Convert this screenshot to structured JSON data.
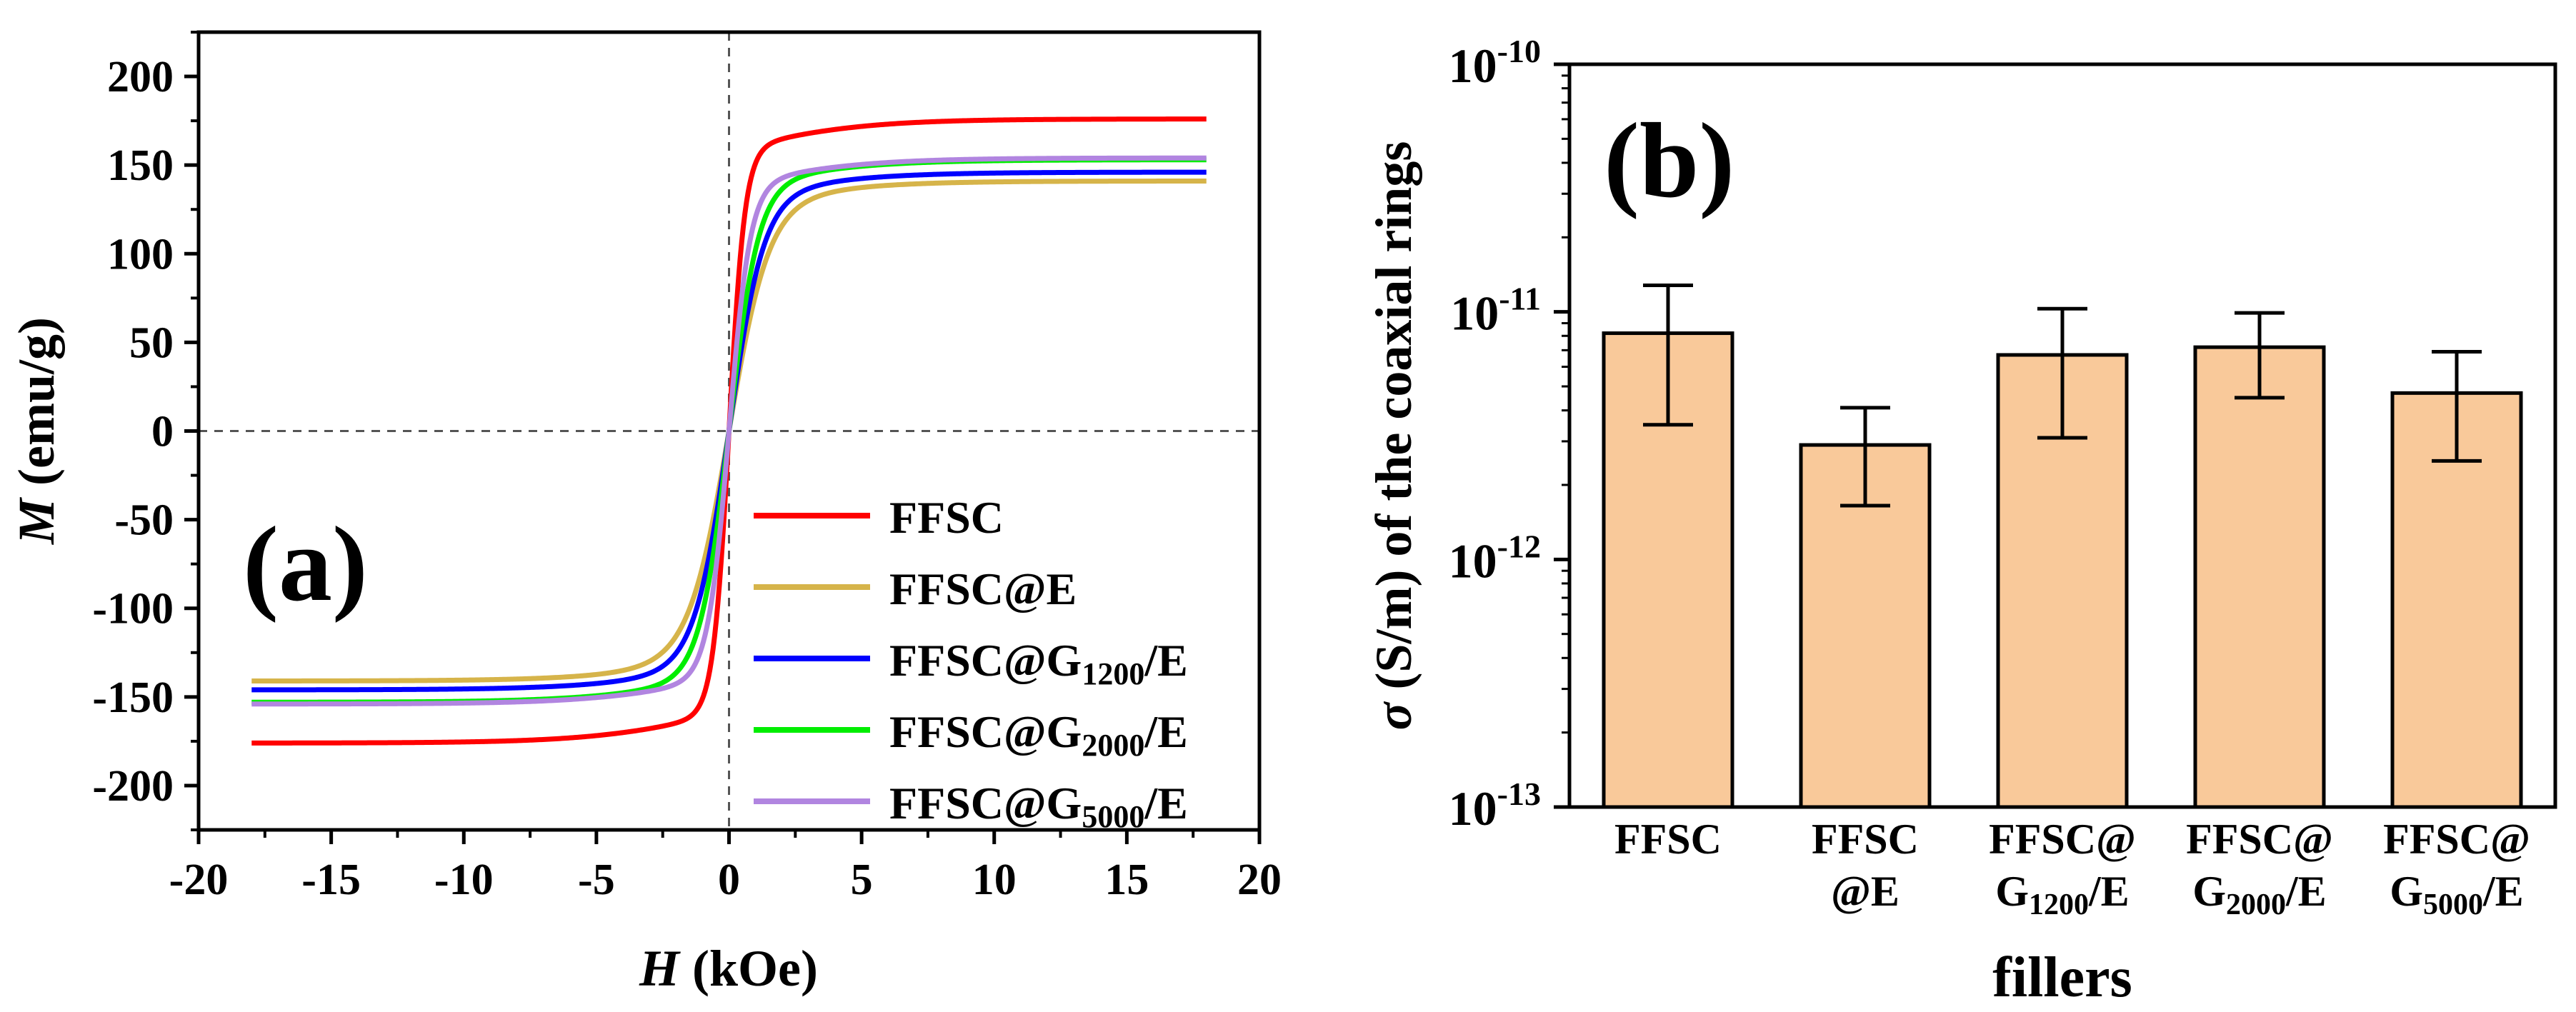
{
  "chart_data": [
    {
      "panel": "(a)",
      "type": "line",
      "xlabel": {
        "symbol": "H",
        "unit": " (kOe)"
      },
      "ylabel": {
        "symbol": "M",
        "unit": " (emu/g)"
      },
      "xlim": [
        -20,
        20
      ],
      "ylim": [
        -225,
        225
      ],
      "xticks": [
        -20,
        -15,
        -10,
        -5,
        0,
        5,
        10,
        15,
        20
      ],
      "yticks": [
        -200,
        -150,
        -100,
        -50,
        0,
        50,
        100,
        150,
        200
      ],
      "x_range": [
        -18,
        18
      ],
      "series": [
        {
          "name": "FFSC",
          "label_main": "FFSC",
          "label_sub": "",
          "label_tail": "",
          "color": "#ff0000",
          "Ms": 176,
          "a": 0.6,
          "sat": 0.9,
          "k": 0.1
        },
        {
          "name": "FFSC@E",
          "label_main": "FFSC@E",
          "label_sub": "",
          "label_tail": "",
          "color": "#d6b44a",
          "Ms": 141,
          "a": 1.5,
          "sat": 0.9,
          "k": 0.1
        },
        {
          "name": "FFSC@G1200/E",
          "label_main": "FFSC@G",
          "label_sub": "1200",
          "label_tail": "/E",
          "color": "#0000ff",
          "Ms": 146,
          "a": 1.3,
          "sat": 0.9,
          "k": 0.1
        },
        {
          "name": "FFSC@G2000/E",
          "label_main": "FFSC@G",
          "label_sub": "2000",
          "label_tail": "/E",
          "color": "#00ee00",
          "Ms": 153,
          "a": 1.1,
          "sat": 0.9,
          "k": 0.1
        },
        {
          "name": "FFSC@G5000/E",
          "label_main": "FFSC@G",
          "label_sub": "5000",
          "label_tail": "/E",
          "color": "#b185e0",
          "Ms": 154,
          "a": 0.8,
          "sat": 0.9,
          "k": 0.1
        }
      ]
    },
    {
      "panel": "(b)",
      "type": "bar",
      "yscale": "log",
      "xlabel": "fillers",
      "ylabel": {
        "symbol": "σ",
        "unit": " (S/m) of the coaxial rings"
      },
      "ylim": [
        1e-13,
        1e-10
      ],
      "yticks": [
        {
          "value": 1e-13,
          "base": "10",
          "exp": "-13"
        },
        {
          "value": 1e-12,
          "base": "10",
          "exp": "-12"
        },
        {
          "value": 1e-11,
          "base": "10",
          "exp": "-11"
        },
        {
          "value": 1e-10,
          "base": "10",
          "exp": "-10"
        }
      ],
      "bar_color": "#f9c99a",
      "categories": [
        {
          "line1": "FFSC",
          "line2_main": "",
          "line2_sub": "",
          "line2_tail": "",
          "value": 8.2e-12,
          "err_low": 3.5e-12,
          "err_high": 1.28e-11
        },
        {
          "line1": "FFSC",
          "line2_main": "@E",
          "line2_sub": "",
          "line2_tail": "",
          "value": 2.9e-12,
          "err_low": 1.65e-12,
          "err_high": 4.1e-12
        },
        {
          "line1": "FFSC@",
          "line2_main": "G",
          "line2_sub": "1200",
          "line2_tail": "/E",
          "value": 6.7e-12,
          "err_low": 3.1e-12,
          "err_high": 1.03e-11
        },
        {
          "line1": "FFSC@",
          "line2_main": "G",
          "line2_sub": "2000",
          "line2_tail": "/E",
          "value": 7.2e-12,
          "err_low": 4.5e-12,
          "err_high": 9.9e-12
        },
        {
          "line1": "FFSC@",
          "line2_main": "G",
          "line2_sub": "5000",
          "line2_tail": "/E",
          "value": 4.7e-12,
          "err_low": 2.5e-12,
          "err_high": 6.9e-12
        }
      ]
    }
  ]
}
